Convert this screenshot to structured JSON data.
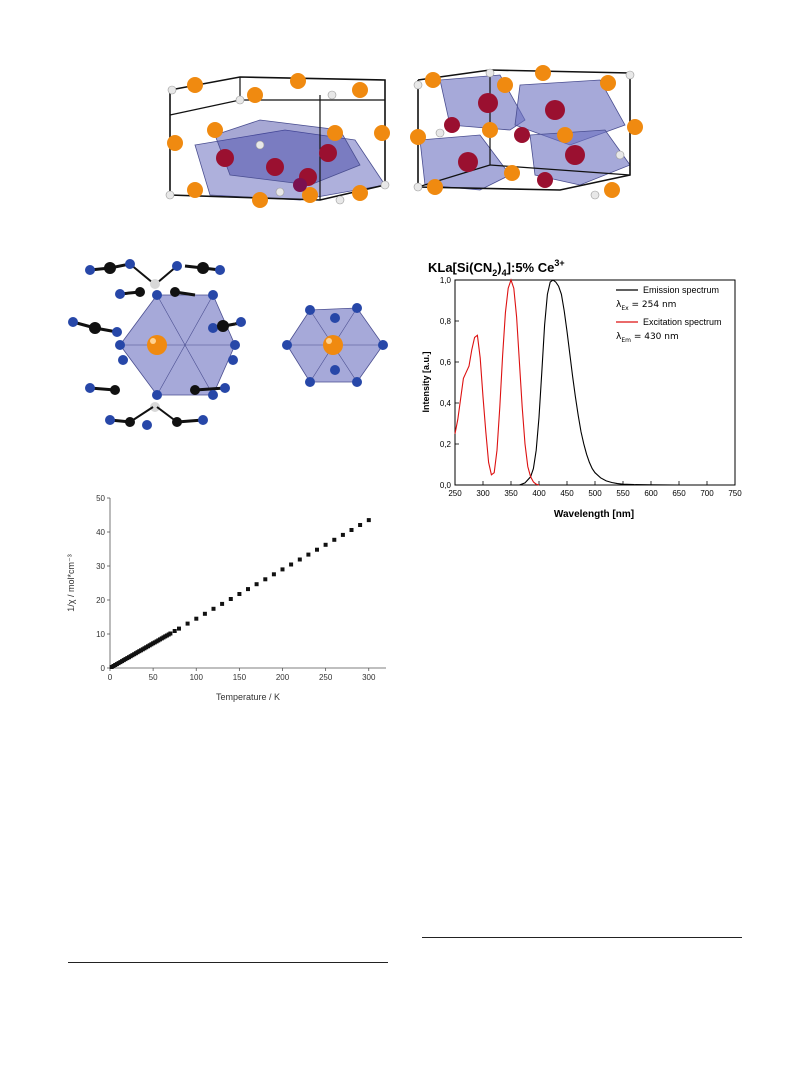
{
  "figures": {
    "crystal_structure": {
      "kind": "illustration"
    },
    "coordination_polyhedra": {
      "kind": "illustration"
    }
  },
  "colors": {
    "polyhedron": "#6b6fc0",
    "polyhedron_dark": "#3b3fa0",
    "orange_atom": "#f08a10",
    "red_atom": "#9a1030",
    "white_atom": "#e8e8e8",
    "blue_atom": "#2747a8",
    "black_atom": "#111111",
    "emission": "#000000",
    "excitation": "#dd1111"
  },
  "chart_data": [
    {
      "id": "photoluminescence",
      "type": "line",
      "title": "KLa[Si(CN2)4]:5% Ce3+",
      "title_parts": {
        "main": "KLa[Si(CN",
        "sub1": "2",
        "mid": ")",
        "sub2": "4",
        "tail": "]:5% Ce",
        "sup": "3+"
      },
      "xlabel": "Wavelength [nm]",
      "ylabel": "Intensity [a.u.]",
      "xlim": [
        250,
        750
      ],
      "ylim": [
        0,
        1.0
      ],
      "xticks": [
        250,
        300,
        350,
        400,
        450,
        500,
        550,
        600,
        650,
        700,
        750
      ],
      "yticks": [
        "0,0",
        "0,2",
        "0,4",
        "0,6",
        "0,8",
        "1,0"
      ],
      "grid": false,
      "legend_position": "top-right",
      "legend": [
        {
          "label": "Emission spectrum",
          "note_main": "λ",
          "note_sub": "Ex",
          "note_tail": " = 254 nm",
          "color": "#000000"
        },
        {
          "label": "Excitation spectrum",
          "note_main": "λ",
          "note_sub": "Em",
          "note_tail": " = 430 nm",
          "color": "#dd1111"
        }
      ],
      "series": [
        {
          "name": "Emission spectrum",
          "color": "#000000",
          "x": [
            365,
            375,
            385,
            390,
            395,
            400,
            405,
            410,
            415,
            420,
            425,
            430,
            435,
            440,
            445,
            450,
            455,
            460,
            465,
            470,
            475,
            480,
            485,
            490,
            495,
            500,
            510,
            520,
            530,
            540,
            550,
            570,
            600,
            650,
            700
          ],
          "y": [
            0.0,
            0.01,
            0.04,
            0.08,
            0.17,
            0.33,
            0.55,
            0.78,
            0.93,
            0.99,
            1.0,
            0.99,
            0.97,
            0.93,
            0.85,
            0.75,
            0.64,
            0.53,
            0.43,
            0.34,
            0.26,
            0.2,
            0.15,
            0.11,
            0.08,
            0.06,
            0.035,
            0.02,
            0.012,
            0.007,
            0.004,
            0.002,
            0.001,
            0.0,
            0.0
          ]
        },
        {
          "name": "Excitation spectrum",
          "color": "#dd1111",
          "x": [
            250,
            255,
            260,
            265,
            270,
            275,
            280,
            285,
            290,
            295,
            300,
            305,
            310,
            315,
            320,
            325,
            330,
            335,
            340,
            345,
            350,
            355,
            360,
            365,
            370,
            375,
            380,
            385,
            390,
            395,
            400
          ],
          "y": [
            0.25,
            0.32,
            0.42,
            0.52,
            0.55,
            0.58,
            0.66,
            0.72,
            0.73,
            0.62,
            0.43,
            0.26,
            0.11,
            0.05,
            0.06,
            0.17,
            0.38,
            0.63,
            0.84,
            0.96,
            1.0,
            0.96,
            0.82,
            0.6,
            0.38,
            0.2,
            0.09,
            0.04,
            0.015,
            0.004,
            0.0
          ]
        }
      ]
    },
    {
      "id": "inverse_susceptibility",
      "type": "scatter",
      "title": "",
      "xlabel": "Temperature / K",
      "ylabel": "1/χ / mol*cm⁻³",
      "xlim": [
        0,
        320
      ],
      "ylim": [
        0,
        50
      ],
      "xticks": [
        0,
        50,
        100,
        150,
        200,
        250,
        300
      ],
      "yticks": [
        0,
        10,
        20,
        30,
        40,
        50
      ],
      "grid": false,
      "series": [
        {
          "name": "",
          "color": "#111111",
          "x": [
            2,
            4,
            6,
            8,
            10,
            12,
            14,
            16,
            18,
            20,
            22,
            24,
            26,
            28,
            30,
            32,
            34,
            36,
            38,
            40,
            42,
            44,
            46,
            48,
            50,
            52,
            54,
            56,
            58,
            60,
            62,
            64,
            66,
            68,
            70,
            75,
            80,
            90,
            100,
            110,
            120,
            130,
            140,
            150,
            160,
            170,
            180,
            190,
            200,
            210,
            220,
            230,
            240,
            250,
            260,
            270,
            280,
            290,
            300
          ],
          "y": [
            0.29,
            0.58,
            0.87,
            1.16,
            1.45,
            1.74,
            2.03,
            2.32,
            2.61,
            2.9,
            3.19,
            3.48,
            3.77,
            4.06,
            4.35,
            4.64,
            4.93,
            5.22,
            5.51,
            5.8,
            6.09,
            6.38,
            6.67,
            6.96,
            7.25,
            7.54,
            7.83,
            8.12,
            8.41,
            8.7,
            8.99,
            9.28,
            9.57,
            9.86,
            10.15,
            10.88,
            11.6,
            13.05,
            14.5,
            15.95,
            17.4,
            18.85,
            20.3,
            21.75,
            23.2,
            24.65,
            26.1,
            27.55,
            29.0,
            30.45,
            31.9,
            33.35,
            34.8,
            36.25,
            37.7,
            39.15,
            40.6,
            42.05,
            43.5
          ]
        }
      ]
    }
  ]
}
